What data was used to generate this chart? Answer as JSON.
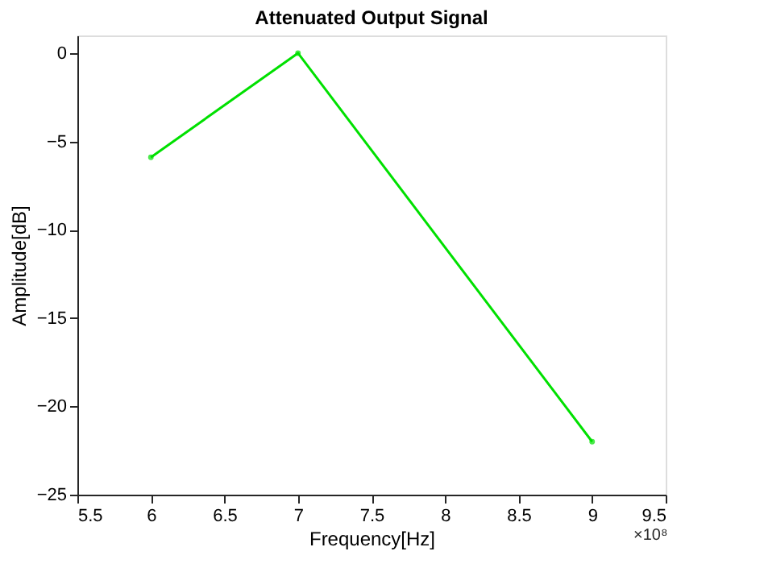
{
  "chart_data": {
    "type": "line",
    "title": "Attenuated Output Signal",
    "xlabel": "Frequency[Hz]",
    "ylabel": "Amplitude[dB]",
    "x": [
      6,
      7,
      9
    ],
    "series": [
      {
        "color": "#00e000",
        "values": [
          -5.9,
          0,
          -22
        ]
      }
    ],
    "xlim": [
      5.5,
      9.5
    ],
    "xticks": [
      5.5,
      6,
      6.5,
      7,
      7.5,
      8,
      8.5,
      9,
      9.5
    ],
    "ylim": [
      -25,
      1
    ],
    "yticks": [
      -25,
      -20,
      -15,
      -10,
      -5,
      0
    ],
    "annotations": [
      "×10⁸"
    ],
    "grid": false,
    "marker": "circle",
    "line_style": "solid"
  }
}
